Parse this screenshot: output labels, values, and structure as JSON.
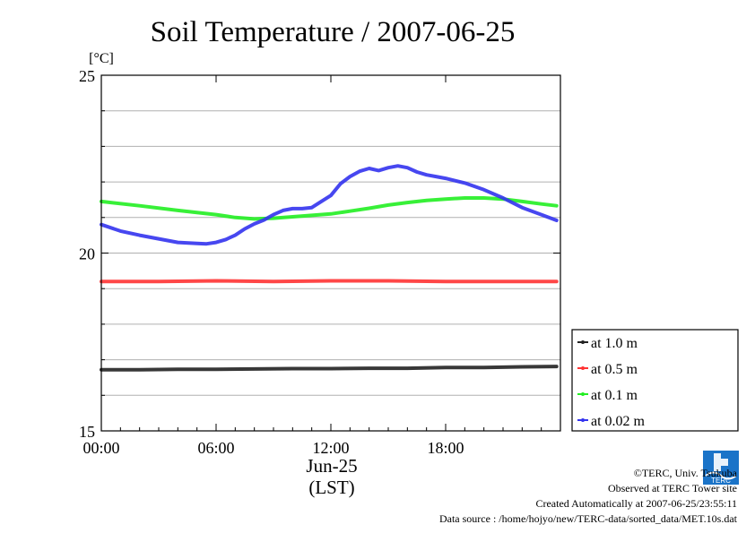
{
  "chart_data": {
    "type": "line",
    "title": "Soil Temperature / 2007-06-25",
    "ylabel": "[°C]",
    "xlabel_date": "Jun-25",
    "xlabel": "(LST)",
    "ylim": [
      15,
      25
    ],
    "xlim": [
      0,
      24
    ],
    "x_tick_labels": [
      "00:00",
      "06:00",
      "12:00",
      "18:00"
    ],
    "x_tick_values": [
      0,
      6,
      12,
      18
    ],
    "y_tick_labels": [
      "15",
      "20",
      "25"
    ],
    "y_tick_values": [
      15,
      20,
      25
    ],
    "y_grid_values": [
      16,
      17,
      18,
      19,
      20,
      21,
      22,
      23,
      24
    ],
    "grid": true,
    "legend_position": "right-bottom-outside",
    "series": [
      {
        "name": "at 1.0 m",
        "color": "#222222",
        "x": [
          0,
          2,
          4,
          6,
          8,
          10,
          12,
          14,
          16,
          18,
          20,
          22,
          23.8
        ],
        "y": [
          16.72,
          16.72,
          16.73,
          16.73,
          16.74,
          16.75,
          16.75,
          16.76,
          16.76,
          16.78,
          16.78,
          16.8,
          16.81
        ]
      },
      {
        "name": "at 0.5 m",
        "color": "#ff3333",
        "x": [
          0,
          3,
          6,
          9,
          12,
          15,
          18,
          21,
          23.8
        ],
        "y": [
          19.2,
          19.2,
          19.22,
          19.2,
          19.22,
          19.22,
          19.2,
          19.2,
          19.2
        ]
      },
      {
        "name": "at 0.1 m",
        "color": "#22ee22",
        "x": [
          0,
          2,
          4,
          6,
          7,
          8,
          9,
          10,
          11,
          12,
          13,
          14,
          15,
          16,
          17,
          18,
          19,
          20,
          21,
          22,
          23,
          23.8
        ],
        "y": [
          21.45,
          21.33,
          21.2,
          21.08,
          21.0,
          20.96,
          20.98,
          21.02,
          21.06,
          21.1,
          21.18,
          21.26,
          21.35,
          21.42,
          21.48,
          21.52,
          21.55,
          21.55,
          21.52,
          21.45,
          21.38,
          21.33
        ]
      },
      {
        "name": "at 0.02 m",
        "color": "#3333ee",
        "x": [
          0,
          1,
          2,
          3,
          4,
          5,
          5.5,
          6,
          6.5,
          7,
          7.5,
          8,
          8.5,
          9,
          9.5,
          10,
          10.5,
          11,
          11.5,
          12,
          12.5,
          13,
          13.5,
          14,
          14.5,
          15,
          15.5,
          16,
          16.5,
          17,
          17.5,
          18,
          19,
          20,
          21,
          22,
          23,
          23.8
        ],
        "y": [
          20.8,
          20.62,
          20.5,
          20.4,
          20.3,
          20.27,
          20.26,
          20.3,
          20.38,
          20.5,
          20.68,
          20.82,
          20.93,
          21.08,
          21.2,
          21.25,
          21.25,
          21.28,
          21.45,
          21.62,
          21.95,
          22.15,
          22.3,
          22.38,
          22.32,
          22.4,
          22.45,
          22.4,
          22.28,
          22.2,
          22.15,
          22.1,
          21.97,
          21.78,
          21.55,
          21.28,
          21.08,
          20.92
        ]
      }
    ]
  },
  "footer": {
    "credit": "©TERC, Univ. Tsukuba",
    "observed": "Observed at TERC Tower site",
    "created": "Created Automatically at 2007-06-25/23:55:11",
    "source": "Data source : /home/hojyo/new/TERC-data/sorted_data/MET.10s.dat"
  },
  "logo": {
    "icon": "terc-logo-icon",
    "text": "TERC",
    "color": "#1a73c8"
  }
}
